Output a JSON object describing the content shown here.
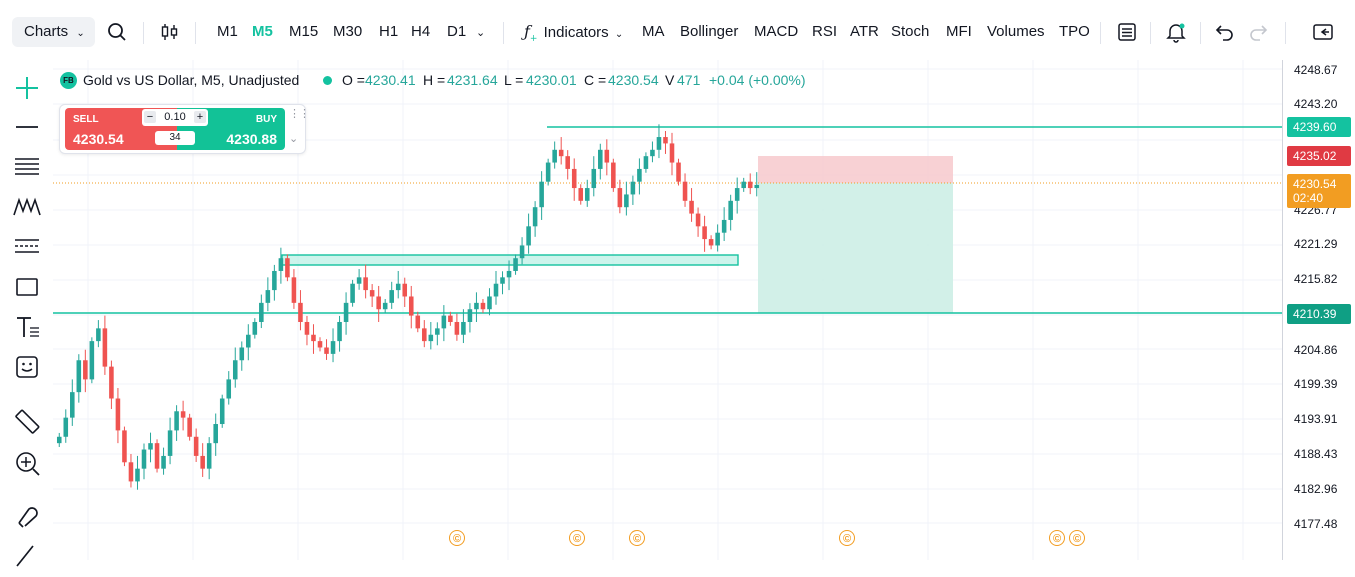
{
  "toolbar": {
    "charts_label": "Charts",
    "timeframes": [
      "M1",
      "M5",
      "M15",
      "M30",
      "H1",
      "H4",
      "D1"
    ],
    "active_timeframe": "M5",
    "indicators_label": "Indicators",
    "indicator_buttons": [
      "MA",
      "Bollinger",
      "MACD",
      "RSI",
      "ATR",
      "Stoch",
      "MFI",
      "Volumes",
      "TPO"
    ]
  },
  "legend": {
    "badge": "FB",
    "symbol": "Gold vs US Dollar, M5, Unadjusted",
    "open_label": "O =",
    "open": "4230.41",
    "high_label": "H =",
    "high": "4231.64",
    "low_label": "L =",
    "low": "4230.01",
    "close_label": "C =",
    "close": "4230.54",
    "volume_label": "V",
    "volume": "471",
    "change": "+0.04 (+0.00%)"
  },
  "trade_panel": {
    "sell_label": "SELL",
    "sell_price": "4230.54",
    "buy_label": "BUY",
    "buy_price": "4230.88",
    "lot": "0.10",
    "minus": "−",
    "plus": "+",
    "spread": "34"
  },
  "price_axis": {
    "ticks": [
      "4248.67",
      "4243.20",
      "4226.77",
      "4221.29",
      "4215.82",
      "4204.86",
      "4199.39",
      "4193.91",
      "4188.43",
      "4182.96",
      "4177.48"
    ],
    "tags": {
      "resistance": "4239.60",
      "stop": "4235.02",
      "current": "4230.54",
      "countdown": "02:40",
      "support": "4210.39"
    }
  },
  "markers": [
    "©",
    "©",
    "©",
    "©",
    "©",
    "©"
  ],
  "colors": {
    "up": "#26a69a",
    "down": "#ef5350",
    "accent": "#14c2a0",
    "stop_zone": "#f7c9cc",
    "profit_zone": "#cdeee6",
    "current_tag": "#f29d22",
    "stop_tag": "#e03a43",
    "line": "#14c2a0"
  }
}
